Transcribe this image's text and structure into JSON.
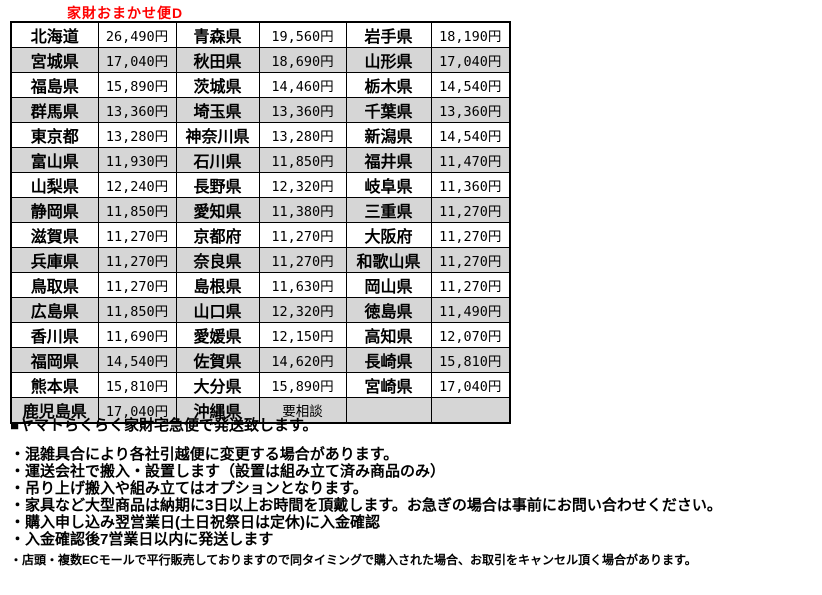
{
  "title": "家財おまかせ便D",
  "colors": {
    "title_red": "#ff0000",
    "alt_row_gray": "#d6d6d6",
    "border_black": "#000000"
  },
  "table": {
    "rows": [
      [
        "北海道",
        "26,490円",
        "青森県",
        "19,560円",
        "岩手県",
        "18,190円"
      ],
      [
        "宮城県",
        "17,040円",
        "秋田県",
        "18,690円",
        "山形県",
        "17,040円"
      ],
      [
        "福島県",
        "15,890円",
        "茨城県",
        "14,460円",
        "栃木県",
        "14,540円"
      ],
      [
        "群馬県",
        "13,360円",
        "埼玉県",
        "13,360円",
        "千葉県",
        "13,360円"
      ],
      [
        "東京都",
        "13,280円",
        "神奈川県",
        "13,280円",
        "新潟県",
        "14,540円"
      ],
      [
        "富山県",
        "11,930円",
        "石川県",
        "11,850円",
        "福井県",
        "11,470円"
      ],
      [
        "山梨県",
        "12,240円",
        "長野県",
        "12,320円",
        "岐阜県",
        "11,360円"
      ],
      [
        "静岡県",
        "11,850円",
        "愛知県",
        "11,380円",
        "三重県",
        "11,270円"
      ],
      [
        "滋賀県",
        "11,270円",
        "京都府",
        "11,270円",
        "大阪府",
        "11,270円"
      ],
      [
        "兵庫県",
        "11,270円",
        "奈良県",
        "11,270円",
        "和歌山県",
        "11,270円"
      ],
      [
        "鳥取県",
        "11,270円",
        "島根県",
        "11,630円",
        "岡山県",
        "11,270円"
      ],
      [
        "広島県",
        "11,850円",
        "山口県",
        "12,320円",
        "徳島県",
        "11,490円"
      ],
      [
        "香川県",
        "11,690円",
        "愛媛県",
        "12,150円",
        "高知県",
        "12,070円"
      ],
      [
        "福岡県",
        "14,540円",
        "佐賀県",
        "14,620円",
        "長崎県",
        "15,810円"
      ],
      [
        "熊本県",
        "15,810円",
        "大分県",
        "15,890円",
        "宮崎県",
        "17,040円"
      ],
      [
        "鹿児島県",
        "17,040円",
        "沖縄県",
        "要相談",
        "",
        ""
      ]
    ]
  },
  "notes": {
    "heading": "■ヤマトらくらく家財宅急便で発送致します。",
    "bullets": [
      "・混雑具合により各社引越便に変更する場合があります。",
      "・運送会社で搬入・設置します（設置は組み立て済み商品のみ）",
      "・吊り上げ搬入や組み立てはオプションとなります。",
      "・家具など大型商品は納期に3日以上お時間を頂戴します。お急ぎの場合は事前にお問い合わせください。",
      "・購入申し込み翌営業日(土日祝祭日は定休)に入金確認",
      "・入金確認後7営業日以内に発送します"
    ],
    "footnote": "・店頭・複数ECモールで平行販売しておりますので同タイミングで購入された場合、お取引をキャンセル頂く場合があります。"
  }
}
